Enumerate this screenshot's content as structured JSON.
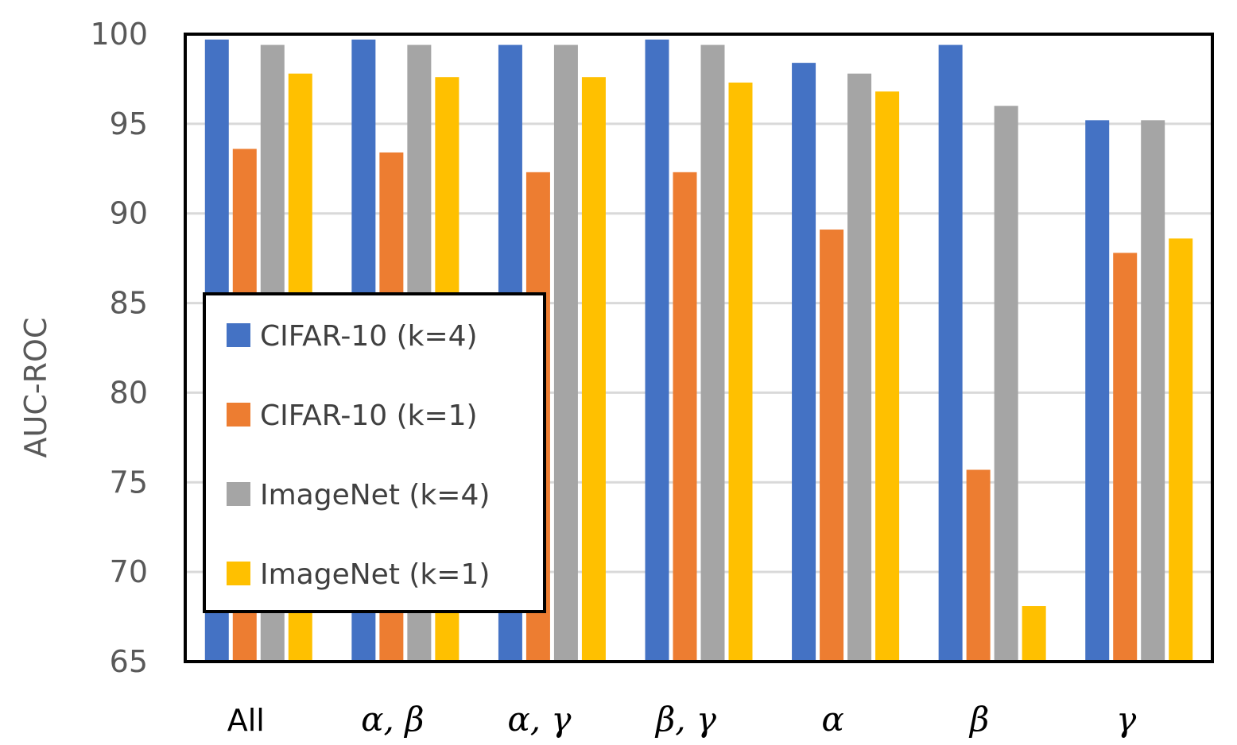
{
  "chart_data": {
    "type": "bar",
    "title": "",
    "xlabel": "",
    "ylabel": "AUC-ROC",
    "ylim": [
      65,
      100
    ],
    "yticks": [
      65,
      70,
      75,
      80,
      85,
      90,
      95,
      100
    ],
    "grid": true,
    "legend_position": "left-middle",
    "categories": [
      "All",
      "α, β",
      "α, γ",
      "β, γ",
      "α",
      "β",
      "γ"
    ],
    "series": [
      {
        "name": "CIFAR-10 (k=4)",
        "color": "#4472c4",
        "values": [
          99.7,
          99.7,
          99.4,
          99.7,
          98.4,
          99.4,
          95.2
        ]
      },
      {
        "name": "CIFAR-10 (k=1)",
        "color": "#ed7d31",
        "values": [
          93.6,
          93.4,
          92.3,
          92.3,
          89.1,
          75.7,
          87.8
        ]
      },
      {
        "name": "ImageNet (k=4)",
        "color": "#a5a5a5",
        "values": [
          99.4,
          99.4,
          99.4,
          99.4,
          97.8,
          96.0,
          95.2
        ]
      },
      {
        "name": "ImageNet (k=1)",
        "color": "#ffc000",
        "values": [
          97.8,
          97.6,
          97.6,
          97.3,
          96.8,
          68.1,
          88.6
        ]
      }
    ]
  }
}
